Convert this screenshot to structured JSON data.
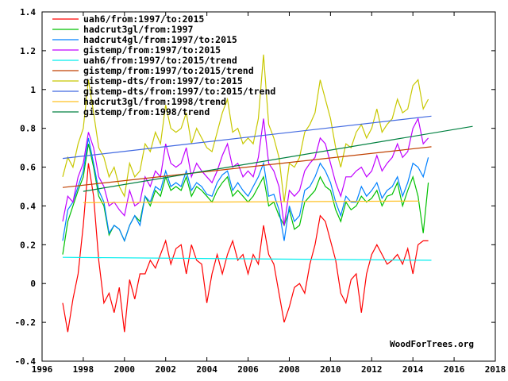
{
  "chart_data": {
    "type": "line",
    "title": "",
    "xlabel": "",
    "ylabel": "",
    "xlim": [
      1996,
      2018
    ],
    "ylim": [
      -0.4,
      1.4
    ],
    "x_ticks": [
      "1996",
      "1998",
      "2000",
      "2002",
      "2004",
      "2006",
      "2008",
      "2010",
      "2012",
      "2014",
      "2016",
      "2018"
    ],
    "y_ticks": [
      "-0.4",
      "-0.2",
      "0",
      "0.2",
      "0.4",
      "0.6",
      "0.8",
      "1",
      "1.2",
      "1.4"
    ],
    "grid": false,
    "legend_position": "top-left",
    "watermark": "WoodForTrees.org",
    "x_start": 1997.0,
    "x_step": 0.25,
    "series": [
      {
        "name": "uah6/from:1997/to:2015",
        "color": "#ff0000",
        "kind": "data",
        "start": 1997.0,
        "values": [
          -0.1,
          -0.25,
          -0.08,
          0.05,
          0.3,
          0.62,
          0.45,
          0.12,
          -0.1,
          -0.05,
          -0.15,
          -0.02,
          -0.25,
          0.02,
          -0.08,
          0.05,
          0.05,
          0.12,
          0.08,
          0.15,
          0.22,
          0.1,
          0.18,
          0.2,
          0.05,
          0.2,
          0.12,
          0.1,
          -0.1,
          0.05,
          0.15,
          0.05,
          0.15,
          0.22,
          0.12,
          0.15,
          0.05,
          0.15,
          0.1,
          0.3,
          0.15,
          0.1,
          -0.05,
          -0.2,
          -0.12,
          -0.02,
          0.0,
          -0.05,
          0.1,
          0.2,
          0.35,
          0.32,
          0.22,
          0.12,
          -0.05,
          -0.1,
          0.02,
          0.05,
          -0.15,
          0.05,
          0.15,
          0.2,
          0.15,
          0.1,
          0.12,
          0.15,
          0.1,
          0.18,
          0.05,
          0.2,
          0.22,
          0.22
        ]
      },
      {
        "name": "hadcrut3gl/from:1997",
        "color": "#00c000",
        "kind": "data",
        "start": 1997.0,
        "values": [
          0.15,
          0.32,
          0.4,
          0.48,
          0.55,
          0.72,
          0.6,
          0.45,
          0.4,
          0.25,
          0.3,
          0.28,
          0.22,
          0.3,
          0.35,
          0.32,
          0.45,
          0.4,
          0.48,
          0.45,
          0.55,
          0.48,
          0.5,
          0.48,
          0.55,
          0.45,
          0.5,
          0.48,
          0.45,
          0.42,
          0.48,
          0.52,
          0.55,
          0.45,
          0.48,
          0.45,
          0.42,
          0.45,
          0.5,
          0.55,
          0.4,
          0.42,
          0.35,
          0.3,
          0.38,
          0.28,
          0.3,
          0.42,
          0.45,
          0.48,
          0.55,
          0.5,
          0.48,
          0.38,
          0.32,
          0.42,
          0.38,
          0.4,
          0.45,
          0.42,
          0.44,
          0.48,
          0.4,
          0.45,
          0.46,
          0.52,
          0.4,
          0.48,
          0.55,
          0.45,
          0.26,
          0.52
        ]
      },
      {
        "name": "hadcrut4gl/from:1997/to:2015",
        "color": "#0080ff",
        "kind": "data",
        "start": 1997.0,
        "values": [
          0.22,
          0.38,
          0.42,
          0.5,
          0.58,
          0.75,
          0.62,
          0.48,
          0.42,
          0.26,
          0.3,
          0.28,
          0.22,
          0.3,
          0.35,
          0.3,
          0.45,
          0.42,
          0.5,
          0.48,
          0.58,
          0.5,
          0.52,
          0.5,
          0.58,
          0.48,
          0.52,
          0.5,
          0.46,
          0.45,
          0.52,
          0.56,
          0.58,
          0.48,
          0.52,
          0.48,
          0.45,
          0.5,
          0.55,
          0.62,
          0.45,
          0.46,
          0.38,
          0.22,
          0.4,
          0.32,
          0.35,
          0.48,
          0.5,
          0.55,
          0.62,
          0.58,
          0.52,
          0.42,
          0.35,
          0.45,
          0.42,
          0.42,
          0.5,
          0.45,
          0.48,
          0.52,
          0.44,
          0.48,
          0.5,
          0.55,
          0.45,
          0.52,
          0.62,
          0.6,
          0.55,
          0.65
        ]
      },
      {
        "name": "gistemp/from:1997/to:2015",
        "color": "#c000ff",
        "kind": "data",
        "start": 1997.0,
        "values": [
          0.32,
          0.45,
          0.42,
          0.55,
          0.62,
          0.78,
          0.7,
          0.55,
          0.5,
          0.4,
          0.42,
          0.38,
          0.35,
          0.48,
          0.4,
          0.42,
          0.55,
          0.5,
          0.58,
          0.55,
          0.72,
          0.62,
          0.6,
          0.62,
          0.7,
          0.55,
          0.62,
          0.58,
          0.55,
          0.52,
          0.58,
          0.66,
          0.72,
          0.6,
          0.62,
          0.55,
          0.58,
          0.55,
          0.65,
          0.85,
          0.62,
          0.58,
          0.5,
          0.3,
          0.48,
          0.45,
          0.48,
          0.58,
          0.62,
          0.65,
          0.75,
          0.72,
          0.62,
          0.52,
          0.45,
          0.55,
          0.55,
          0.58,
          0.6,
          0.55,
          0.58,
          0.66,
          0.58,
          0.62,
          0.65,
          0.72,
          0.65,
          0.68,
          0.8,
          0.85,
          0.72,
          0.75
        ]
      },
      {
        "name": "uah6/from:1997/to:2015/trend",
        "color": "#00eeee",
        "kind": "trend",
        "x": [
          1997.0,
          2014.9
        ],
        "values": [
          0.135,
          0.12
        ]
      },
      {
        "name": "gistemp/from:1997/to:2015/trend",
        "color": "#c04000",
        "kind": "trend",
        "x": [
          1997.0,
          2014.9
        ],
        "values": [
          0.495,
          0.705
        ]
      },
      {
        "name": "gistemp-dts/from:1997/to:2015",
        "color": "#c8c800",
        "kind": "data",
        "start": 1997.0,
        "values": [
          0.55,
          0.65,
          0.6,
          0.72,
          0.8,
          1.05,
          0.88,
          0.7,
          0.65,
          0.55,
          0.6,
          0.5,
          0.45,
          0.62,
          0.55,
          0.58,
          0.72,
          0.68,
          0.78,
          0.72,
          0.92,
          0.8,
          0.78,
          0.8,
          0.88,
          0.72,
          0.8,
          0.75,
          0.7,
          0.68,
          0.78,
          0.88,
          0.95,
          0.78,
          0.8,
          0.72,
          0.75,
          0.72,
          0.85,
          1.18,
          0.82,
          0.75,
          0.65,
          0.42,
          0.62,
          0.6,
          0.65,
          0.78,
          0.82,
          0.88,
          1.05,
          0.95,
          0.85,
          0.7,
          0.6,
          0.72,
          0.7,
          0.78,
          0.82,
          0.75,
          0.8,
          0.9,
          0.78,
          0.82,
          0.85,
          0.95,
          0.88,
          0.9,
          1.02,
          1.05,
          0.9,
          0.95
        ]
      },
      {
        "name": "gistemp-dts/from:1997/to:2015/trend",
        "color": "#4169e1",
        "kind": "trend",
        "x": [
          1997.0,
          2014.9
        ],
        "values": [
          0.645,
          0.863
        ]
      },
      {
        "name": "hadcrut3gl/from:1998/trend",
        "color": "#ffc020",
        "kind": "trend",
        "x": [
          1998.0,
          2014.3
        ],
        "values": [
          0.417,
          0.425
        ]
      },
      {
        "name": "gistemp/from:1998/trend",
        "color": "#008040",
        "kind": "trend",
        "x": [
          1998.0,
          2016.9
        ],
        "values": [
          0.475,
          0.81
        ]
      }
    ]
  }
}
